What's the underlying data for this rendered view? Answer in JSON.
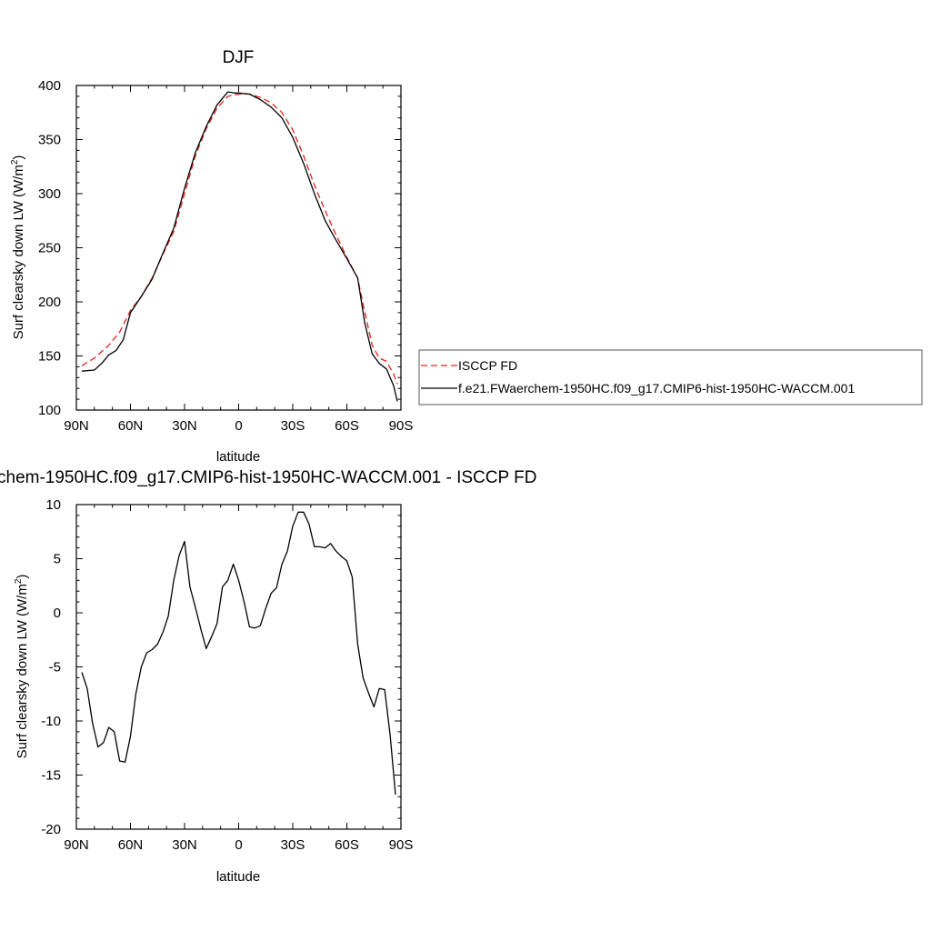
{
  "chart_data": [
    {
      "type": "line",
      "title": "DJF",
      "xlabel": "latitude",
      "ylabel": "Surf clearsky down LW (W/m",
      "ylabel_sup": "2",
      "ylabel_end": ")",
      "xlim": [
        90,
        -90
      ],
      "ylim": [
        100,
        400
      ],
      "xticks": [
        90,
        60,
        30,
        0,
        -30,
        -60,
        -90
      ],
      "xtick_labels": [
        "90N",
        "60N",
        "30N",
        "0",
        "30S",
        "60S",
        "90S"
      ],
      "yticks": [
        100,
        150,
        200,
        250,
        300,
        350,
        400
      ],
      "ytick_labels": [
        "100",
        "150",
        "200",
        "250",
        "300",
        "350",
        "400"
      ],
      "legend_position": "outside-right",
      "series": [
        {
          "name": "ISCCP FD",
          "color": "#e8201a",
          "dash": "dashed",
          "x": [
            87,
            80,
            72,
            66,
            60,
            54,
            48,
            42,
            36,
            30,
            24,
            18,
            12,
            6,
            0,
            -6,
            -12,
            -18,
            -24,
            -30,
            -36,
            -42,
            -48,
            -54,
            -60,
            -66,
            -70,
            -74,
            -78,
            -82,
            -86,
            -88
          ],
          "y": [
            141,
            148,
            160,
            172,
            192,
            205,
            222,
            244,
            265,
            300,
            335,
            360,
            379,
            390,
            392,
            392,
            389,
            384,
            375,
            359,
            335,
            308,
            284,
            262,
            241,
            222,
            190,
            160,
            148,
            145,
            133,
            124
          ]
        },
        {
          "name": "f.e21.FWaerchem-1950HC.f09_g17.CMIP6-hist-1950HC-WACCM.001",
          "color": "#000000",
          "dash": "solid",
          "x": [
            87,
            80,
            76,
            72,
            68,
            64,
            60,
            54,
            48,
            42,
            36,
            30,
            24,
            18,
            12,
            6,
            2,
            0,
            -6,
            -12,
            -18,
            -24,
            -30,
            -36,
            -42,
            -48,
            -54,
            -60,
            -66,
            -70,
            -74,
            -78,
            -82,
            -86,
            -88
          ],
          "y": [
            136,
            137,
            143,
            151,
            155,
            165,
            190,
            205,
            221,
            245,
            268,
            305,
            338,
            362,
            382,
            394,
            393,
            393,
            392,
            387,
            380,
            370,
            352,
            328,
            300,
            275,
            257,
            240,
            222,
            180,
            152,
            143,
            138,
            122,
            108
          ]
        }
      ]
    },
    {
      "type": "line",
      "title": "chem-1950HC.f09_g17.CMIP6-hist-1950HC-WACCM.001 - ISCCP FD",
      "xlabel": "latitude",
      "ylabel": "Surf clearsky down LW (W/m",
      "ylabel_sup": "2",
      "ylabel_end": ")",
      "xlim": [
        90,
        -90
      ],
      "ylim": [
        -20,
        10
      ],
      "xticks": [
        90,
        60,
        30,
        0,
        -30,
        -60,
        -90
      ],
      "xtick_labels": [
        "90N",
        "60N",
        "30N",
        "0",
        "30S",
        "60S",
        "90S"
      ],
      "yticks": [
        -20,
        -15,
        -10,
        -5,
        0,
        5,
        10
      ],
      "ytick_labels": [
        "-20",
        "-15",
        "-10",
        "-5",
        "0",
        "5",
        "10"
      ],
      "series": [
        {
          "color": "#000000",
          "dash": "solid",
          "x": [
            87,
            84,
            81,
            78,
            75,
            72,
            69,
            66,
            63,
            60,
            57,
            54,
            51,
            48,
            45,
            42,
            39,
            36,
            33,
            30,
            27,
            24,
            21,
            18,
            15,
            12,
            9,
            6,
            3,
            0,
            -3,
            -6,
            -9,
            -12,
            -15,
            -18,
            -21,
            -24,
            -27,
            -30,
            -33,
            -36,
            -39,
            -42,
            -45,
            -48,
            -51,
            -54,
            -57,
            -60,
            -63,
            -66,
            -69,
            -72,
            -75,
            -78,
            -81,
            -84,
            -87
          ],
          "y": [
            -5.5,
            -7.0,
            -10.2,
            -12.4,
            -12.0,
            -10.6,
            -11.0,
            -13.7,
            -13.8,
            -11.4,
            -7.5,
            -5.0,
            -3.7,
            -3.4,
            -2.9,
            -1.8,
            -0.3,
            3.0,
            5.3,
            6.6,
            2.4,
            0.5,
            -1.5,
            -3.3,
            -2.2,
            -1.0,
            2.4,
            3.0,
            4.5,
            3.0,
            1.0,
            -1.3,
            -1.4,
            -1.2,
            0.4,
            1.8,
            2.3,
            4.5,
            5.7,
            8.0,
            9.3,
            9.3,
            8.2,
            6.1,
            6.1,
            6.0,
            6.4,
            5.7,
            5.2,
            4.8,
            3.3,
            -2.9,
            -6.0,
            -7.4,
            -8.7,
            -7.0,
            -7.1,
            -11.3,
            -16.8
          ]
        }
      ]
    }
  ]
}
